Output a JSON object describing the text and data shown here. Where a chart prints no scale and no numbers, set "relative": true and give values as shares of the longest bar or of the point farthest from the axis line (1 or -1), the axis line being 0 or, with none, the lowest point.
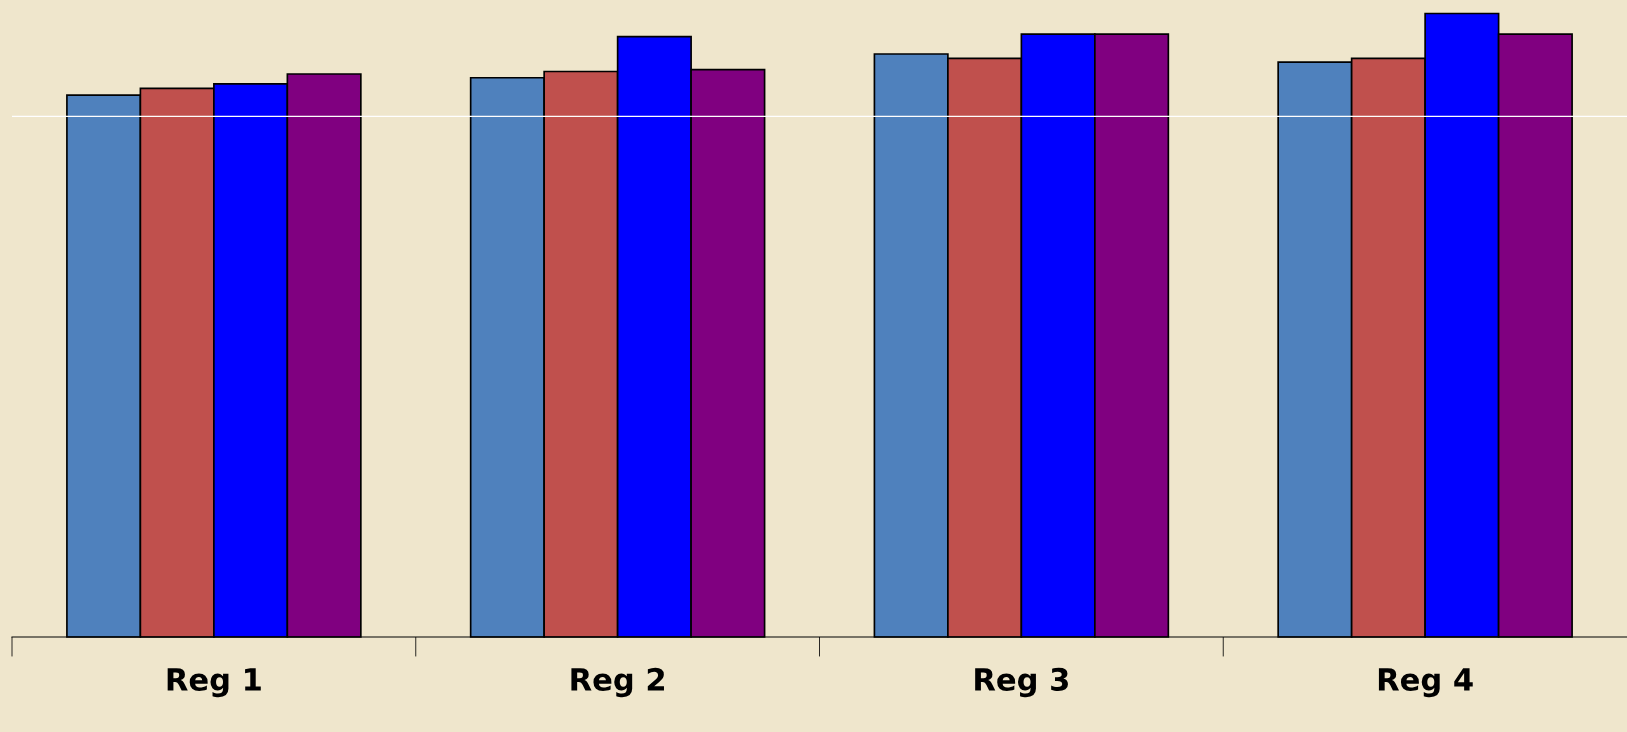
{
  "chart_data": {
    "type": "bar",
    "relative": true,
    "categories": [
      "Reg 1",
      "Reg 2",
      "Reg 3",
      "Reg 4"
    ],
    "series": [
      {
        "color": "#4f81bd",
        "values": [
          0.869,
          0.897,
          0.935,
          0.922
        ]
      },
      {
        "color": "#c0504d",
        "values": [
          0.88,
          0.907,
          0.928,
          0.928
        ]
      },
      {
        "color": "#0000ff",
        "values": [
          0.887,
          0.963,
          0.967,
          1.0
        ]
      },
      {
        "color": "#800080",
        "values": [
          0.903,
          0.91,
          0.967,
          0.967
        ]
      }
    ],
    "ref_lines": [
      {
        "axis": "y",
        "value": 0.835,
        "color": "#ffffff"
      }
    ],
    "grid": false,
    "legend": false
  }
}
